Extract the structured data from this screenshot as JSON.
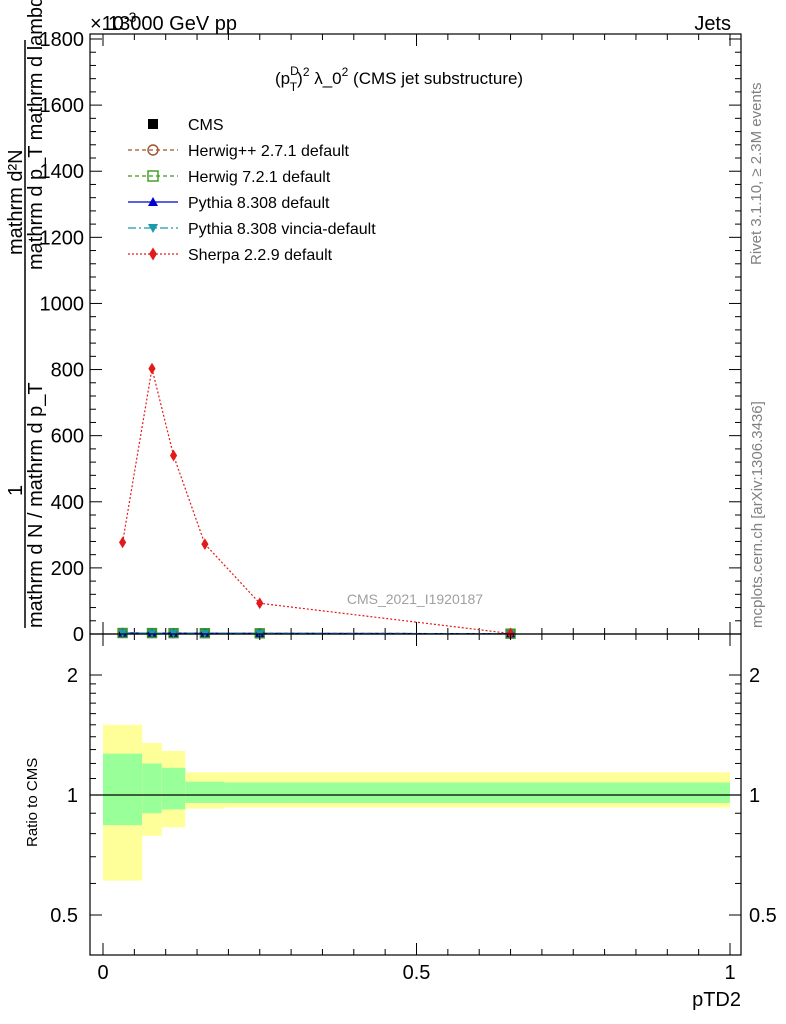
{
  "header": {
    "left": "13000 GeV pp",
    "right": "Jets",
    "exponent": "×10",
    "exponent_sup": "-3"
  },
  "side_text": {
    "rivet": "Rivet 3.1.10, ≥ 2.3M events",
    "mcplots": "mcplots.cern.ch [arXiv:1306.3436]"
  },
  "watermark": "CMS_2021_I1920187",
  "main_panel": {
    "title_parts": {
      "p": "(p",
      "sup_D": "D",
      "sub_T": "T",
      "close": ")",
      "sq": "2",
      "lam": " λ_0",
      "sq2": "2",
      "rest": " (CMS jet substructure)"
    },
    "ylabel_numerator": "mathrm d²N",
    "ylabel_upper": "mathrm d p_T mathrm d lambda",
    "ylabel_one": "1",
    "ylabel_denominator": "mathrm d N / mathrm d p_T"
  },
  "ratio_panel": {
    "ylabel": "Ratio to CMS",
    "xlabel": "pTD2"
  },
  "colors": {
    "cms": "#000000",
    "herwigpp": "#a0522d",
    "herwig7": "#3a9a1a",
    "pythia": "#0000cc",
    "vincia": "#1a9aaa",
    "sherpa": "#e31a1c",
    "band_inner": "#99ff99",
    "band_outer": "#ffff99"
  },
  "chart_data": [
    {
      "type": "line",
      "x": [
        0.03125,
        0.078125,
        0.1125,
        0.1625,
        0.25,
        0.65
      ],
      "xlim": [
        -0.02,
        1.02
      ],
      "ylim": [
        0,
        1800
      ],
      "y_ticks": [
        0,
        200,
        400,
        600,
        800,
        1000,
        1200,
        1400,
        1600,
        1800
      ],
      "y_tick_labels": [
        "0",
        "200",
        "400",
        "600",
        "800",
        "1000",
        "1200",
        "1400",
        "1600",
        "1800"
      ],
      "series": [
        {
          "name": "CMS",
          "marker": "square",
          "values": [
            3.0,
            2.8,
            2.6,
            2.4,
            2.0,
            1.0
          ]
        },
        {
          "name": "Herwig++ 2.7.1 default",
          "marker": "circle",
          "values": [
            3.0,
            2.8,
            2.6,
            2.4,
            2.0,
            1.0
          ]
        },
        {
          "name": "Herwig 7.2.1 default",
          "marker": "open-square",
          "values": [
            3.0,
            2.8,
            2.6,
            2.4,
            2.0,
            1.0
          ]
        },
        {
          "name": "Pythia 8.308 default",
          "marker": "triangle-up",
          "values": [
            3.0,
            2.8,
            2.6,
            2.4,
            2.0,
            1.0
          ]
        },
        {
          "name": "Pythia 8.308 vincia-default",
          "marker": "triangle-down",
          "values": [
            3.0,
            2.8,
            2.6,
            2.4,
            2.0,
            1.0
          ]
        },
        {
          "name": "Sherpa 2.2.9 default",
          "marker": "diamond",
          "values": [
            277,
            803,
            540,
            272,
            93,
            1.5
          ]
        }
      ]
    },
    {
      "type": "area",
      "ylim": [
        0.38,
        2.35
      ],
      "x_ticks": [
        0,
        0.5,
        1
      ],
      "x_tick_labels": [
        "0",
        "0.5",
        "1"
      ],
      "y_ticks": [
        0.5,
        1,
        2
      ],
      "y_tick_labels": [
        "0.5",
        "1",
        "2"
      ],
      "bins": [
        {
          "lo": 0.0,
          "hi": 0.0625,
          "inner": [
            0.84,
            1.27
          ],
          "outer": [
            0.61,
            1.5
          ]
        },
        {
          "lo": 0.0625,
          "hi": 0.09375,
          "inner": [
            0.9,
            1.2
          ],
          "outer": [
            0.79,
            1.35
          ]
        },
        {
          "lo": 0.09375,
          "hi": 0.13125,
          "inner": [
            0.92,
            1.17
          ],
          "outer": [
            0.83,
            1.29
          ]
        },
        {
          "lo": 0.13125,
          "hi": 0.19375,
          "inner": [
            0.955,
            1.08
          ],
          "outer": [
            0.925,
            1.14
          ]
        },
        {
          "lo": 0.19375,
          "hi": 0.30625,
          "inner": [
            0.955,
            1.075
          ],
          "outer": [
            0.93,
            1.14
          ]
        },
        {
          "lo": 0.30625,
          "hi": 1.0,
          "inner": [
            0.955,
            1.075
          ],
          "outer": [
            0.93,
            1.14
          ]
        }
      ]
    }
  ]
}
